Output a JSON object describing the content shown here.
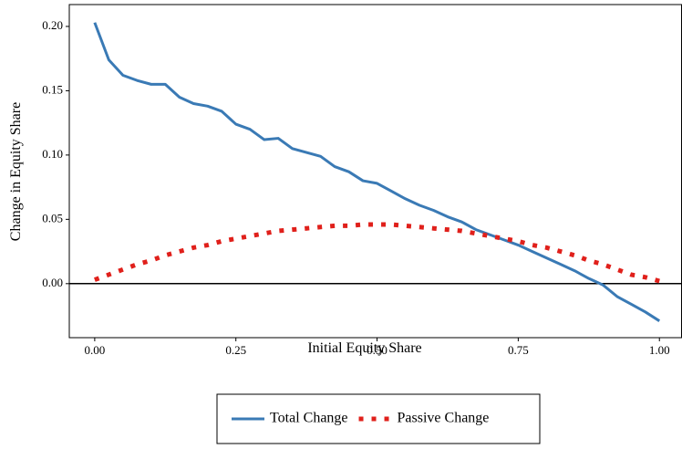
{
  "chart_data": {
    "type": "line",
    "x_label": "Initial Equity Share",
    "y_label": "Change in Equity Share",
    "x": [
      0,
      0.025,
      0.05,
      0.075,
      0.1,
      0.125,
      0.15,
      0.175,
      0.2,
      0.225,
      0.25,
      0.275,
      0.3,
      0.325,
      0.35,
      0.375,
      0.4,
      0.425,
      0.45,
      0.475,
      0.5,
      0.525,
      0.55,
      0.575,
      0.6,
      0.625,
      0.65,
      0.675,
      0.7,
      0.725,
      0.75,
      0.775,
      0.8,
      0.825,
      0.85,
      0.875,
      0.9,
      0.925,
      0.95,
      0.975,
      1.0
    ],
    "series": [
      {
        "name": "Total Change",
        "color": "#3a7ab5",
        "style": "solid",
        "values": [
          0.203,
          0.174,
          0.162,
          0.158,
          0.155,
          0.155,
          0.145,
          0.14,
          0.138,
          0.134,
          0.124,
          0.12,
          0.112,
          0.113,
          0.105,
          0.102,
          0.099,
          0.091,
          0.087,
          0.08,
          0.078,
          0.072,
          0.066,
          0.061,
          0.057,
          0.052,
          0.048,
          0.042,
          0.038,
          0.034,
          0.03,
          0.025,
          0.02,
          0.015,
          0.01,
          0.004,
          -0.001,
          -0.01,
          -0.016,
          -0.022,
          -0.029
        ]
      },
      {
        "name": "Passive Change",
        "color": "#e0201b",
        "style": "dotted",
        "values": [
          0.003,
          0.007,
          0.011,
          0.015,
          0.018,
          0.022,
          0.025,
          0.028,
          0.03,
          0.033,
          0.035,
          0.037,
          0.039,
          0.041,
          0.042,
          0.043,
          0.044,
          0.045,
          0.045,
          0.046,
          0.046,
          0.046,
          0.045,
          0.044,
          0.043,
          0.042,
          0.041,
          0.039,
          0.037,
          0.035,
          0.033,
          0.03,
          0.028,
          0.025,
          0.022,
          0.018,
          0.015,
          0.011,
          0.007,
          0.005,
          0.002
        ]
      }
    ],
    "xlim": [
      -0.045,
      1.04
    ],
    "ylim": [
      -0.042,
      0.217
    ],
    "xticks": [
      {
        "value": 0,
        "label": "0.00"
      },
      {
        "value": 0.25,
        "label": "0.25"
      },
      {
        "value": 0.5,
        "label": "0.50"
      },
      {
        "value": 0.75,
        "label": "0.75"
      },
      {
        "value": 1,
        "label": "1.00"
      }
    ],
    "yticks": [
      {
        "value": 0,
        "label": "0.00"
      },
      {
        "value": 0.05,
        "label": "0.05"
      },
      {
        "value": 0.1,
        "label": "0.10"
      },
      {
        "value": 0.15,
        "label": "0.15"
      },
      {
        "value": 0.2,
        "label": "0.20"
      }
    ],
    "hline": 0,
    "grid": false,
    "legend": "bottom"
  }
}
